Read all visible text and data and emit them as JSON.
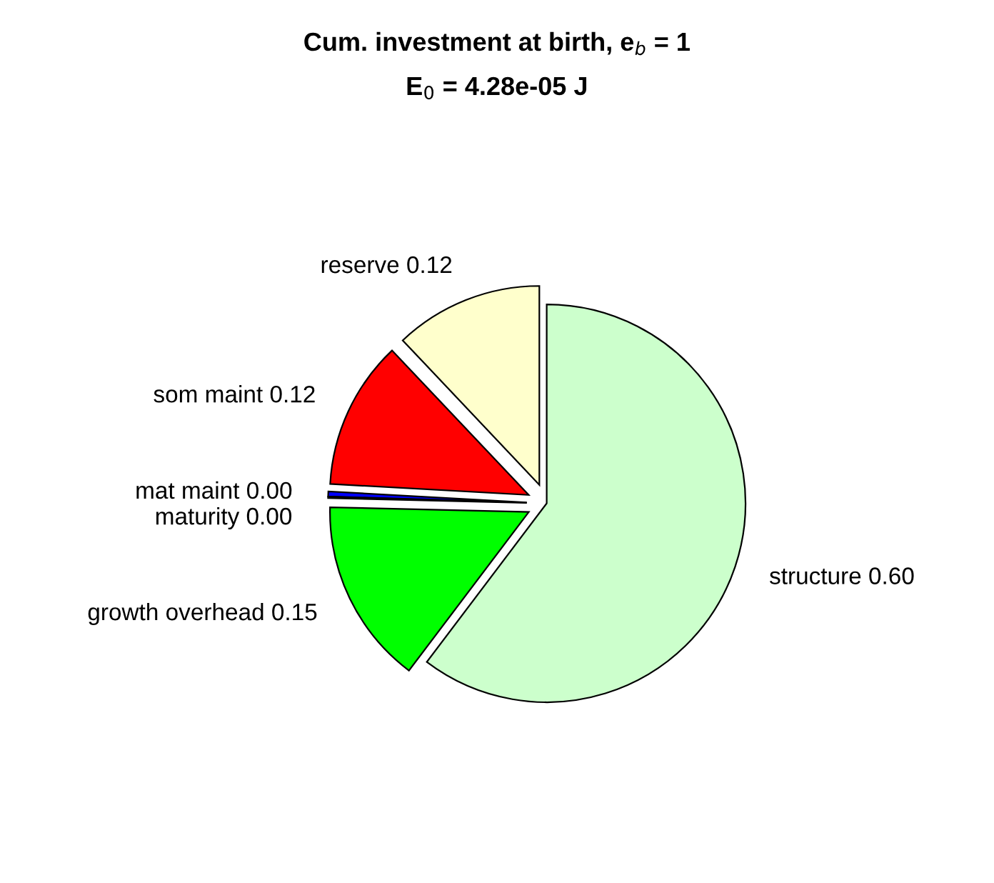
{
  "chart_data": {
    "type": "pie",
    "title": "Cum. investment at birth, e$_{b}$ = 1",
    "subtitle": "E$_{0}$ = 4.28e-05 J",
    "categories": [
      "reserve",
      "som maint",
      "mat maint",
      "maturity",
      "growth overhead",
      "structure"
    ],
    "values": [
      0.12,
      0.12,
      0.004,
      0.001,
      0.15,
      0.6
    ],
    "value_labels": [
      "0.12",
      "0.12",
      "0.00",
      "0.00",
      "0.15",
      "0.60"
    ],
    "colors": [
      "#ffffcc",
      "#ff0000",
      "#0000ff",
      "#ff00ff",
      "#00ff00",
      "#ccffcc"
    ],
    "legend": false
  }
}
